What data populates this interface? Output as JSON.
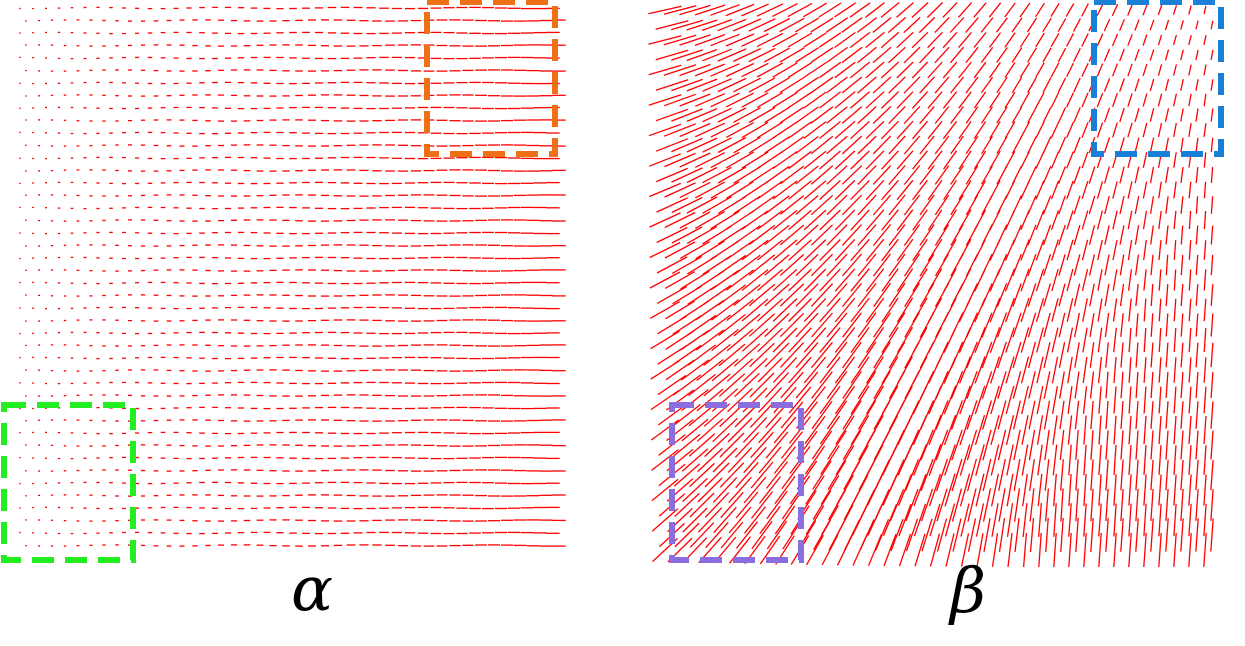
{
  "panels": [
    {
      "id": "alpha",
      "caption": "α",
      "field_type": "horizontal-segments",
      "segment_color": "#ff0000",
      "highlights": [
        {
          "name": "top-right-region",
          "color": "#f07018"
        },
        {
          "name": "bottom-left-region",
          "color": "#22ee22"
        }
      ]
    },
    {
      "id": "beta",
      "caption": "β",
      "field_type": "fan-segments",
      "segment_color": "#ff0000",
      "highlights": [
        {
          "name": "top-right-region",
          "color": "#1a7fd6"
        },
        {
          "name": "bottom-left-region",
          "color": "#8a6ee0"
        }
      ]
    }
  ]
}
